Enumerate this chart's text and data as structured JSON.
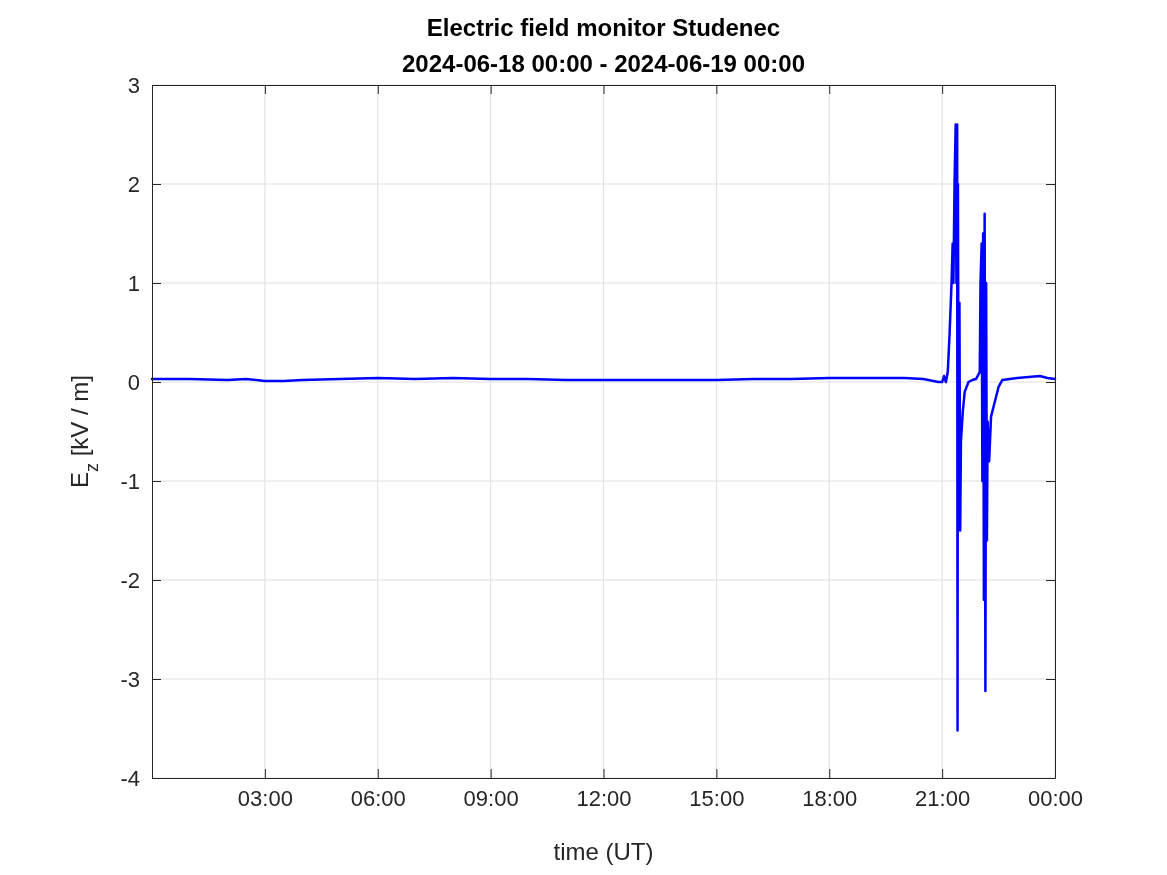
{
  "chart_data": {
    "type": "line",
    "title": "Electric field monitor Studenec",
    "subtitle": "2024-06-18 00:00 - 2024-06-19 00:00",
    "xlabel": "time (UT)",
    "ylabel": "E$_{z}$ [kV / m]",
    "xlim": [
      0,
      24
    ],
    "xticks": [
      {
        "value": 3,
        "label": "03:00"
      },
      {
        "value": 6,
        "label": "06:00"
      },
      {
        "value": 9,
        "label": "09:00"
      },
      {
        "value": 12,
        "label": "12:00"
      },
      {
        "value": 15,
        "label": "15:00"
      },
      {
        "value": 18,
        "label": "18:00"
      },
      {
        "value": 21,
        "label": "21:00"
      },
      {
        "value": 24,
        "label": "00:00"
      }
    ],
    "ylim": [
      -4,
      3
    ],
    "yticks": [
      -4,
      -3,
      -2,
      -1,
      0,
      1,
      2,
      3
    ],
    "grid": true,
    "line_style": "solid",
    "series": [
      {
        "color": "#0000ff",
        "x": [
          0,
          1,
          2,
          2.5,
          3,
          3.5,
          4,
          5,
          6,
          7,
          8,
          9,
          10,
          11,
          12,
          13,
          14,
          15,
          16,
          17,
          18,
          19,
          20,
          20.5,
          20.9,
          21.0,
          21.05,
          21.1,
          21.15,
          21.2,
          21.25,
          21.28,
          21.3,
          21.33,
          21.36,
          21.38,
          21.4,
          21.41,
          21.42,
          21.44,
          21.46,
          21.48,
          21.5,
          21.55,
          21.6,
          21.7,
          21.8,
          21.9,
          22.0,
          22.02,
          22.05,
          22.07,
          22.09,
          22.11,
          22.13,
          22.15,
          22.17,
          22.19,
          22.21,
          22.25,
          22.3,
          22.4,
          22.5,
          22.6,
          22.8,
          23,
          23.3,
          23.6,
          23.8,
          24
        ],
        "values": [
          0.03,
          0.03,
          0.02,
          0.03,
          0.01,
          0.01,
          0.02,
          0.03,
          0.04,
          0.03,
          0.04,
          0.03,
          0.03,
          0.02,
          0.02,
          0.02,
          0.02,
          0.02,
          0.03,
          0.03,
          0.04,
          0.04,
          0.04,
          0.03,
          0,
          0,
          0.06,
          0,
          0.1,
          0.5,
          1,
          1.4,
          1,
          2,
          2.6,
          1,
          2.6,
          -3.52,
          2,
          -1,
          0.8,
          -1.5,
          -0.6,
          -0.3,
          -0.1,
          0,
          0.02,
          0.03,
          0.1,
          1,
          1.4,
          -1,
          1.5,
          -2.2,
          1.7,
          -3.12,
          1,
          -1.6,
          -0.4,
          -0.8,
          -0.35,
          -0.2,
          -0.05,
          0.02,
          0.03,
          0.04,
          0.05,
          0.06,
          0.04,
          0.03
        ]
      }
    ]
  }
}
